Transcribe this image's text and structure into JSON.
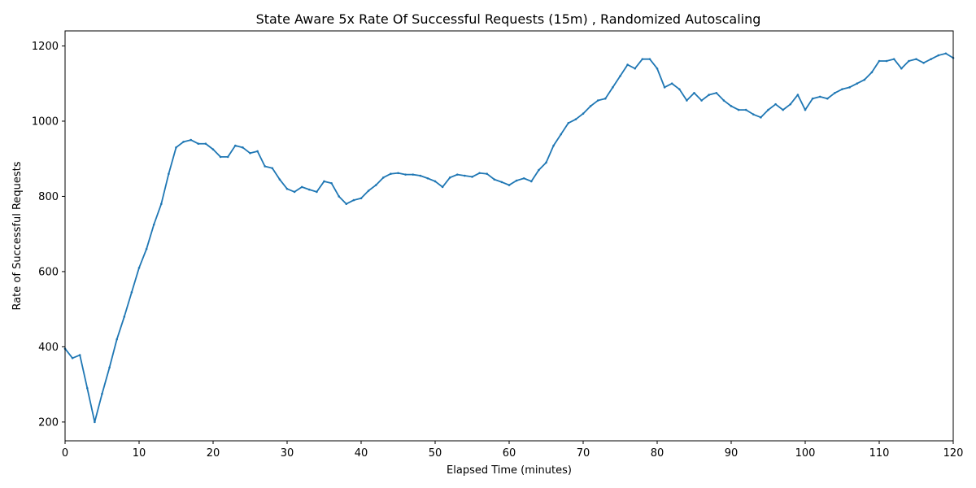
{
  "chart_data": {
    "type": "line",
    "title": "State Aware 5x Rate Of Successful Requests (15m) , Randomized Autoscaling",
    "xlabel": "Elapsed Time (minutes)",
    "ylabel": "Rate of Successful Requests",
    "xlim": [
      0,
      120
    ],
    "ylim": [
      150,
      1240
    ],
    "xticks": [
      0,
      10,
      20,
      30,
      40,
      50,
      60,
      70,
      80,
      90,
      100,
      110,
      120
    ],
    "yticks": [
      200,
      400,
      600,
      800,
      1000,
      1200
    ],
    "grid": false,
    "line_color": "#1f77b4",
    "series": [
      {
        "x": [
          0,
          1,
          2,
          3,
          4,
          5,
          6,
          7,
          8,
          9,
          10,
          11,
          12,
          13,
          14,
          15,
          16,
          17,
          18,
          19,
          20,
          21,
          22,
          23,
          24,
          25,
          26,
          27,
          28,
          29,
          30,
          31,
          32,
          33,
          34,
          35,
          36,
          37,
          38,
          39,
          40,
          41,
          42,
          43,
          44,
          45,
          46,
          47,
          48,
          49,
          50,
          51,
          52,
          53,
          54,
          55,
          56,
          57,
          58,
          59,
          60,
          61,
          62,
          63,
          64,
          65,
          66,
          67,
          68,
          69,
          70,
          71,
          72,
          73,
          74,
          75,
          76,
          77,
          78,
          79,
          80,
          81,
          82,
          83,
          84,
          85,
          86,
          87,
          88,
          89,
          90,
          91,
          92,
          93,
          94,
          95,
          96,
          97,
          98,
          99,
          100,
          101,
          102,
          103,
          104,
          105,
          106,
          107,
          108,
          109,
          110,
          111,
          112,
          113,
          114,
          115,
          116,
          117,
          118,
          119,
          120
        ],
        "y": [
          395,
          370,
          378,
          290,
          200,
          275,
          345,
          420,
          480,
          545,
          610,
          660,
          725,
          780,
          860,
          930,
          945,
          950,
          940,
          940,
          925,
          905,
          905,
          935,
          930,
          915,
          920,
          880,
          875,
          845,
          820,
          812,
          825,
          818,
          812,
          840,
          835,
          800,
          780,
          790,
          795,
          815,
          830,
          850,
          860,
          862,
          858,
          858,
          855,
          848,
          840,
          825,
          850,
          858,
          855,
          852,
          862,
          860,
          845,
          838,
          830,
          842,
          848,
          840,
          870,
          890,
          935,
          965,
          995,
          1005,
          1020,
          1040,
          1055,
          1060,
          1090,
          1120,
          1150,
          1140,
          1165,
          1165,
          1140,
          1090,
          1100,
          1085,
          1055,
          1075,
          1055,
          1070,
          1075,
          1055,
          1040,
          1030,
          1030,
          1018,
          1010,
          1030,
          1045,
          1030,
          1045,
          1070,
          1030,
          1060,
          1065,
          1060,
          1075,
          1085,
          1090,
          1100,
          1110,
          1130,
          1160,
          1160,
          1165,
          1140,
          1160,
          1165,
          1155,
          1165,
          1175,
          1180,
          1168
        ]
      }
    ]
  }
}
